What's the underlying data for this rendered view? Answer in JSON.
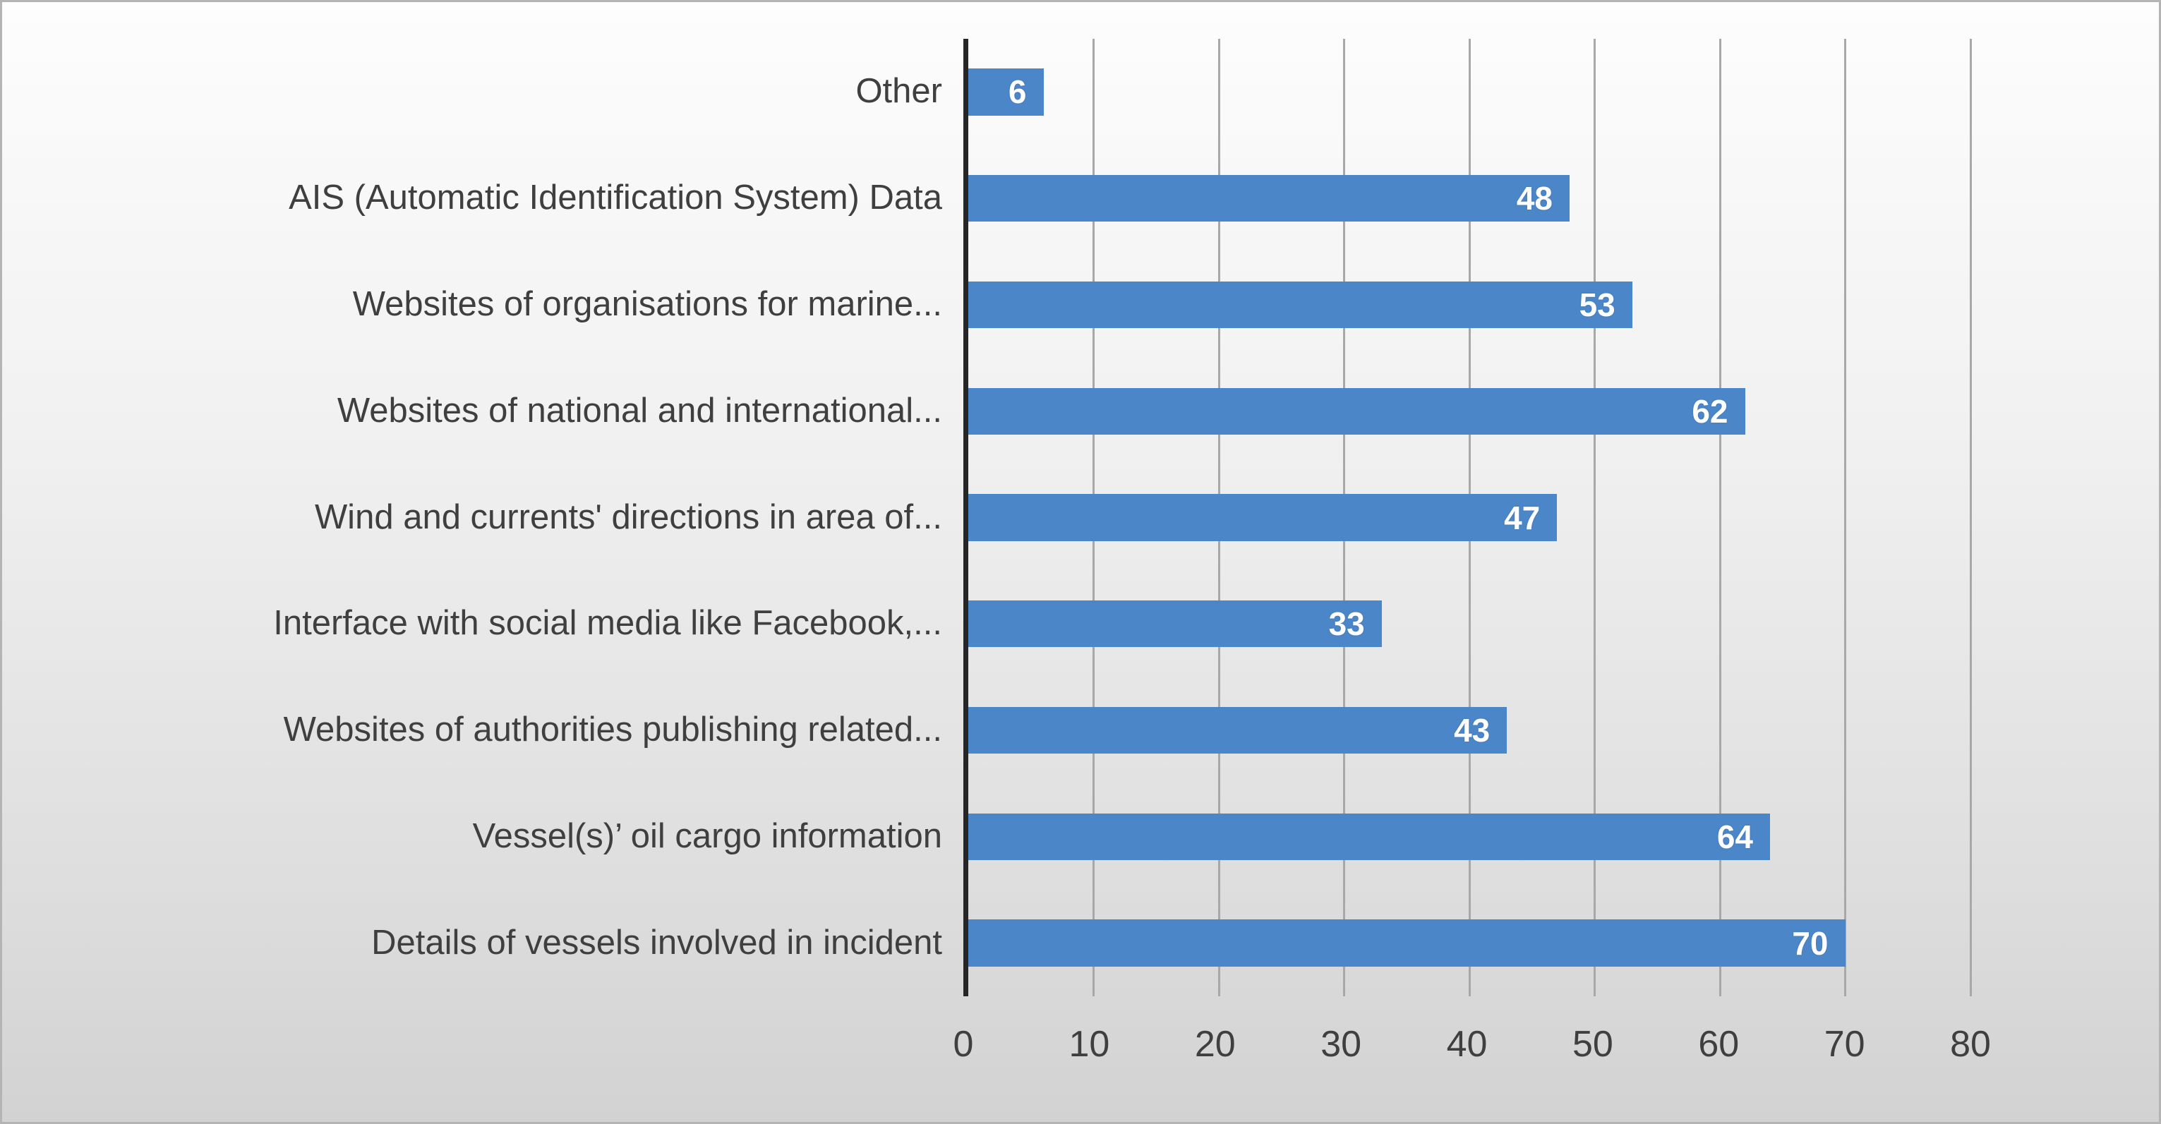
{
  "chart_data": {
    "type": "bar",
    "orientation": "horizontal",
    "title": "",
    "xlabel": "",
    "ylabel": "",
    "categories": [
      "Other",
      "AIS (Automatic Identification System) Data",
      "Websites of organisations for marine...",
      "Websites of national and international...",
      "Wind and currents' directions in area of...",
      "Interface with social media like Facebook,...",
      "Websites of authorities  publishing related...",
      "Vessel(s)’ oil cargo information",
      "Details of vessels involved in incident"
    ],
    "values": [
      6,
      48,
      53,
      62,
      47,
      33,
      43,
      64,
      70
    ],
    "xlim": [
      0,
      80
    ],
    "xticks": [
      0,
      10,
      20,
      30,
      40,
      50,
      60,
      70,
      80
    ],
    "grid": true,
    "legend": "none",
    "data_labels_position": "inside-end",
    "colors": {
      "bar": "#4a86c8",
      "data_label": "#ffffff",
      "gridline": "#a8a8a8",
      "axis_line": "#262626",
      "text": "#3f3f3f"
    }
  }
}
